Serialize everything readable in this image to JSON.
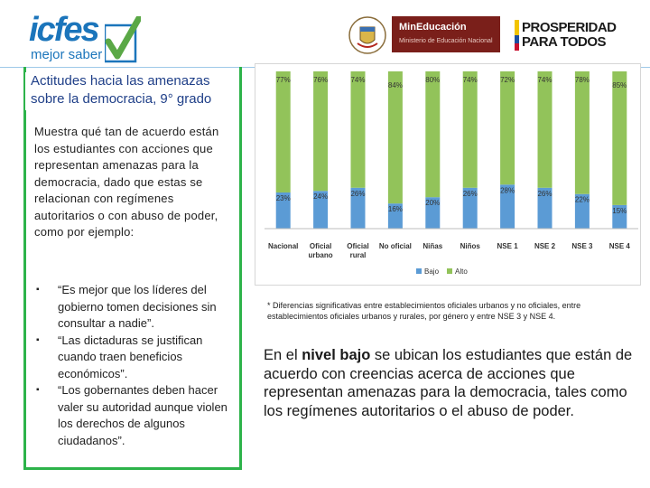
{
  "header": {
    "icfes_word": "icfes",
    "icfes_tagline": "mejor saber",
    "ministry_name": "MinEducación",
    "ministry_sub": "Ministerio de Educación Nacional",
    "prosperity_line1": "PROSPERIDAD",
    "prosperity_line2": "PARA TODOS"
  },
  "title": {
    "line1": "Actitudes hacia las amenazas",
    "line2": "sobre la democracia, 9° grado"
  },
  "description": "Muestra qué tan de acuerdo están los estudiantes con acciones que representan amenazas para la democracia, dado que estas se relacionan con regímenes autoritarios o con abuso de poder, como por ejemplo:",
  "bullets": [
    "“Es mejor que los líderes del gobierno tomen decisiones sin consultar a nadie”.",
    "“Las dictaduras se justifican cuando traen beneficios económicos”.",
    "“Los gobernantes deben hacer valer su autoridad aunque violen los derechos de algunos ciudadanos”."
  ],
  "bullet_marker": "▪",
  "footnote": "* Diferencias significativas entre establecimientos oficiales urbanos y no oficiales, entre establecimientos oficiales urbanos y rurales, por género  y entre NSE 3  y NSE 4.",
  "main_text": {
    "before": "En el ",
    "bold": "nivel bajo",
    "after": " se ubican los estudiantes que están de acuerdo con creencias acerca de acciones que representan amenazas para la democracia, tales como los regímenes autoritarios o el abuso de poder."
  },
  "colors": {
    "bajo": "#5b9bd5",
    "alto": "#92c35a",
    "border_green": "#2db34a",
    "title_blue": "#1f3f88",
    "ministry_red": "#7a1f1a"
  },
  "chart_data": {
    "type": "bar",
    "stacked": true,
    "percent": true,
    "categories": [
      [
        "Nacional"
      ],
      [
        "Oficial",
        "urbano"
      ],
      [
        "Oficial",
        "rural"
      ],
      [
        "No oficial"
      ],
      [
        "Niñas"
      ],
      [
        "Niños"
      ],
      [
        "NSE 1"
      ],
      [
        "NSE 2"
      ],
      [
        "NSE 3"
      ],
      [
        "NSE 4"
      ]
    ],
    "series": [
      {
        "name": "Bajo",
        "values": [
          23,
          24,
          26,
          16,
          20,
          26,
          28,
          26,
          22,
          15
        ]
      },
      {
        "name": "Alto",
        "values": [
          77,
          76,
          74,
          84,
          80,
          74,
          72,
          74,
          78,
          85
        ]
      }
    ],
    "ylim": [
      0,
      100
    ],
    "legend": "bottom-center",
    "grid": false
  }
}
